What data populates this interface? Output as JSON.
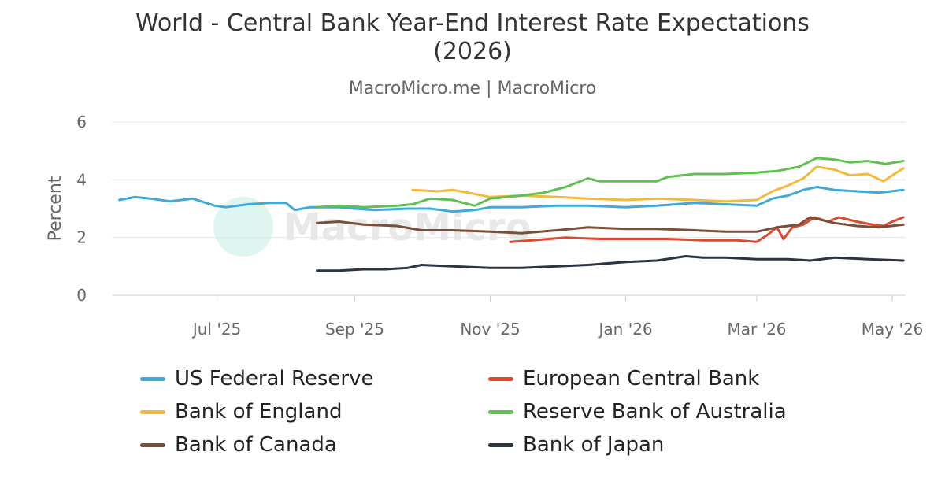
{
  "chart_data": {
    "type": "line",
    "title_line1": "World - Central Bank Year-End Interest Rate Expectations",
    "title_line2": "(2026)",
    "subtitle": "MacroMicro.me | MacroMicro",
    "ylabel": "Percent",
    "ylim": [
      0,
      6
    ],
    "yticks": [
      "0",
      "2",
      "4",
      "6"
    ],
    "x_range": [
      "2025-05-15",
      "2026-05-07"
    ],
    "xticks": [
      {
        "date": "2025-07-01",
        "label": "Jul '25"
      },
      {
        "date": "2025-09-01",
        "label": "Sep '25"
      },
      {
        "date": "2025-11-01",
        "label": "Nov '25"
      },
      {
        "date": "2026-01-01",
        "label": "Jan '26"
      },
      {
        "date": "2026-03-01",
        "label": "Mar '26"
      },
      {
        "date": "2026-05-01",
        "label": "May '26"
      }
    ],
    "grid": true,
    "legend_position": "bottom",
    "watermark": "MacroMicro",
    "series": [
      {
        "name": "US Federal Reserve",
        "color": "#3fa9d8",
        "points": [
          [
            "2025-05-18",
            3.3
          ],
          [
            "2025-05-25",
            3.4
          ],
          [
            "2025-06-01",
            3.35
          ],
          [
            "2025-06-10",
            3.25
          ],
          [
            "2025-06-20",
            3.35
          ],
          [
            "2025-06-30",
            3.1
          ],
          [
            "2025-07-05",
            3.05
          ],
          [
            "2025-07-15",
            3.15
          ],
          [
            "2025-07-25",
            3.2
          ],
          [
            "2025-08-01",
            3.2
          ],
          [
            "2025-08-05",
            2.95
          ],
          [
            "2025-08-12",
            3.05
          ],
          [
            "2025-08-25",
            3.05
          ],
          [
            "2025-09-01",
            3.0
          ],
          [
            "2025-09-10",
            2.95
          ],
          [
            "2025-09-25",
            3.0
          ],
          [
            "2025-10-05",
            3.0
          ],
          [
            "2025-10-15",
            2.9
          ],
          [
            "2025-10-25",
            2.95
          ],
          [
            "2025-11-01",
            3.05
          ],
          [
            "2025-11-15",
            3.05
          ],
          [
            "2025-12-01",
            3.1
          ],
          [
            "2025-12-15",
            3.1
          ],
          [
            "2026-01-01",
            3.05
          ],
          [
            "2026-01-15",
            3.1
          ],
          [
            "2026-02-01",
            3.2
          ],
          [
            "2026-02-15",
            3.15
          ],
          [
            "2026-03-01",
            3.1
          ],
          [
            "2026-03-08",
            3.35
          ],
          [
            "2026-03-15",
            3.45
          ],
          [
            "2026-03-22",
            3.65
          ],
          [
            "2026-03-28",
            3.75
          ],
          [
            "2026-04-05",
            3.65
          ],
          [
            "2026-04-15",
            3.6
          ],
          [
            "2026-04-25",
            3.55
          ],
          [
            "2026-05-06",
            3.65
          ]
        ]
      },
      {
        "name": "European Central Bank",
        "color": "#e0492d",
        "points": [
          [
            "2025-11-10",
            1.85
          ],
          [
            "2025-11-20",
            1.9
          ],
          [
            "2025-12-05",
            2.0
          ],
          [
            "2025-12-20",
            1.95
          ],
          [
            "2026-01-05",
            1.95
          ],
          [
            "2026-01-20",
            1.95
          ],
          [
            "2026-02-05",
            1.9
          ],
          [
            "2026-02-20",
            1.9
          ],
          [
            "2026-03-01",
            1.85
          ],
          [
            "2026-03-06",
            2.1
          ],
          [
            "2026-03-10",
            2.35
          ],
          [
            "2026-03-13",
            1.95
          ],
          [
            "2026-03-17",
            2.35
          ],
          [
            "2026-03-22",
            2.45
          ],
          [
            "2026-03-27",
            2.7
          ],
          [
            "2026-04-02",
            2.55
          ],
          [
            "2026-04-07",
            2.7
          ],
          [
            "2026-04-15",
            2.55
          ],
          [
            "2026-04-22",
            2.45
          ],
          [
            "2026-04-27",
            2.4
          ],
          [
            "2026-05-01",
            2.55
          ],
          [
            "2026-05-06",
            2.7
          ]
        ]
      },
      {
        "name": "Bank of England",
        "color": "#f2b93b",
        "points": [
          [
            "2025-09-27",
            3.65
          ],
          [
            "2025-10-08",
            3.6
          ],
          [
            "2025-10-15",
            3.65
          ],
          [
            "2025-10-22",
            3.55
          ],
          [
            "2025-11-01",
            3.4
          ],
          [
            "2025-11-15",
            3.45
          ],
          [
            "2025-12-01",
            3.4
          ],
          [
            "2025-12-15",
            3.35
          ],
          [
            "2026-01-01",
            3.3
          ],
          [
            "2026-01-15",
            3.35
          ],
          [
            "2026-02-01",
            3.3
          ],
          [
            "2026-02-15",
            3.25
          ],
          [
            "2026-03-01",
            3.3
          ],
          [
            "2026-03-08",
            3.6
          ],
          [
            "2026-03-15",
            3.8
          ],
          [
            "2026-03-22",
            4.05
          ],
          [
            "2026-03-28",
            4.45
          ],
          [
            "2026-04-05",
            4.35
          ],
          [
            "2026-04-12",
            4.15
          ],
          [
            "2026-04-20",
            4.2
          ],
          [
            "2026-04-27",
            3.95
          ],
          [
            "2026-05-01",
            4.15
          ],
          [
            "2026-05-06",
            4.4
          ]
        ]
      },
      {
        "name": "Reserve Bank of Australia",
        "color": "#5fc14f",
        "points": [
          [
            "2025-08-15",
            3.05
          ],
          [
            "2025-08-25",
            3.1
          ],
          [
            "2025-09-05",
            3.05
          ],
          [
            "2025-09-20",
            3.1
          ],
          [
            "2025-09-27",
            3.15
          ],
          [
            "2025-10-05",
            3.35
          ],
          [
            "2025-10-15",
            3.3
          ],
          [
            "2025-10-25",
            3.1
          ],
          [
            "2025-11-01",
            3.35
          ],
          [
            "2025-11-15",
            3.45
          ],
          [
            "2025-11-25",
            3.55
          ],
          [
            "2025-12-05",
            3.75
          ],
          [
            "2025-12-15",
            4.05
          ],
          [
            "2025-12-20",
            3.95
          ],
          [
            "2026-01-01",
            3.95
          ],
          [
            "2026-01-15",
            3.95
          ],
          [
            "2026-01-20",
            4.1
          ],
          [
            "2026-02-01",
            4.2
          ],
          [
            "2026-02-15",
            4.2
          ],
          [
            "2026-03-01",
            4.25
          ],
          [
            "2026-03-10",
            4.3
          ],
          [
            "2026-03-20",
            4.45
          ],
          [
            "2026-03-28",
            4.75
          ],
          [
            "2026-04-05",
            4.7
          ],
          [
            "2026-04-12",
            4.6
          ],
          [
            "2026-04-20",
            4.65
          ],
          [
            "2026-04-28",
            4.55
          ],
          [
            "2026-05-06",
            4.65
          ]
        ]
      },
      {
        "name": "Bank of Canada",
        "color": "#7a4f3a",
        "points": [
          [
            "2025-08-15",
            2.5
          ],
          [
            "2025-08-25",
            2.55
          ],
          [
            "2025-09-05",
            2.45
          ],
          [
            "2025-09-20",
            2.4
          ],
          [
            "2025-10-01",
            2.25
          ],
          [
            "2025-10-15",
            2.25
          ],
          [
            "2025-11-01",
            2.2
          ],
          [
            "2025-11-15",
            2.15
          ],
          [
            "2025-12-01",
            2.25
          ],
          [
            "2025-12-15",
            2.35
          ],
          [
            "2026-01-01",
            2.3
          ],
          [
            "2026-01-15",
            2.3
          ],
          [
            "2026-02-01",
            2.25
          ],
          [
            "2026-02-15",
            2.2
          ],
          [
            "2026-03-01",
            2.2
          ],
          [
            "2026-03-10",
            2.35
          ],
          [
            "2026-03-20",
            2.45
          ],
          [
            "2026-03-25",
            2.7
          ],
          [
            "2026-04-05",
            2.5
          ],
          [
            "2026-04-15",
            2.4
          ],
          [
            "2026-04-25",
            2.35
          ],
          [
            "2026-05-06",
            2.45
          ]
        ]
      },
      {
        "name": "Bank of Japan",
        "color": "#2b3441",
        "points": [
          [
            "2025-08-15",
            0.85
          ],
          [
            "2025-08-25",
            0.85
          ],
          [
            "2025-09-05",
            0.9
          ],
          [
            "2025-09-15",
            0.9
          ],
          [
            "2025-09-25",
            0.95
          ],
          [
            "2025-10-01",
            1.05
          ],
          [
            "2025-10-15",
            1.0
          ],
          [
            "2025-11-01",
            0.95
          ],
          [
            "2025-11-15",
            0.95
          ],
          [
            "2025-12-01",
            1.0
          ],
          [
            "2025-12-15",
            1.05
          ],
          [
            "2026-01-01",
            1.15
          ],
          [
            "2026-01-15",
            1.2
          ],
          [
            "2026-01-28",
            1.35
          ],
          [
            "2026-02-05",
            1.3
          ],
          [
            "2026-02-15",
            1.3
          ],
          [
            "2026-03-01",
            1.25
          ],
          [
            "2026-03-15",
            1.25
          ],
          [
            "2026-03-25",
            1.2
          ],
          [
            "2026-04-05",
            1.3
          ],
          [
            "2026-04-20",
            1.25
          ],
          [
            "2026-05-06",
            1.2
          ]
        ]
      }
    ]
  }
}
